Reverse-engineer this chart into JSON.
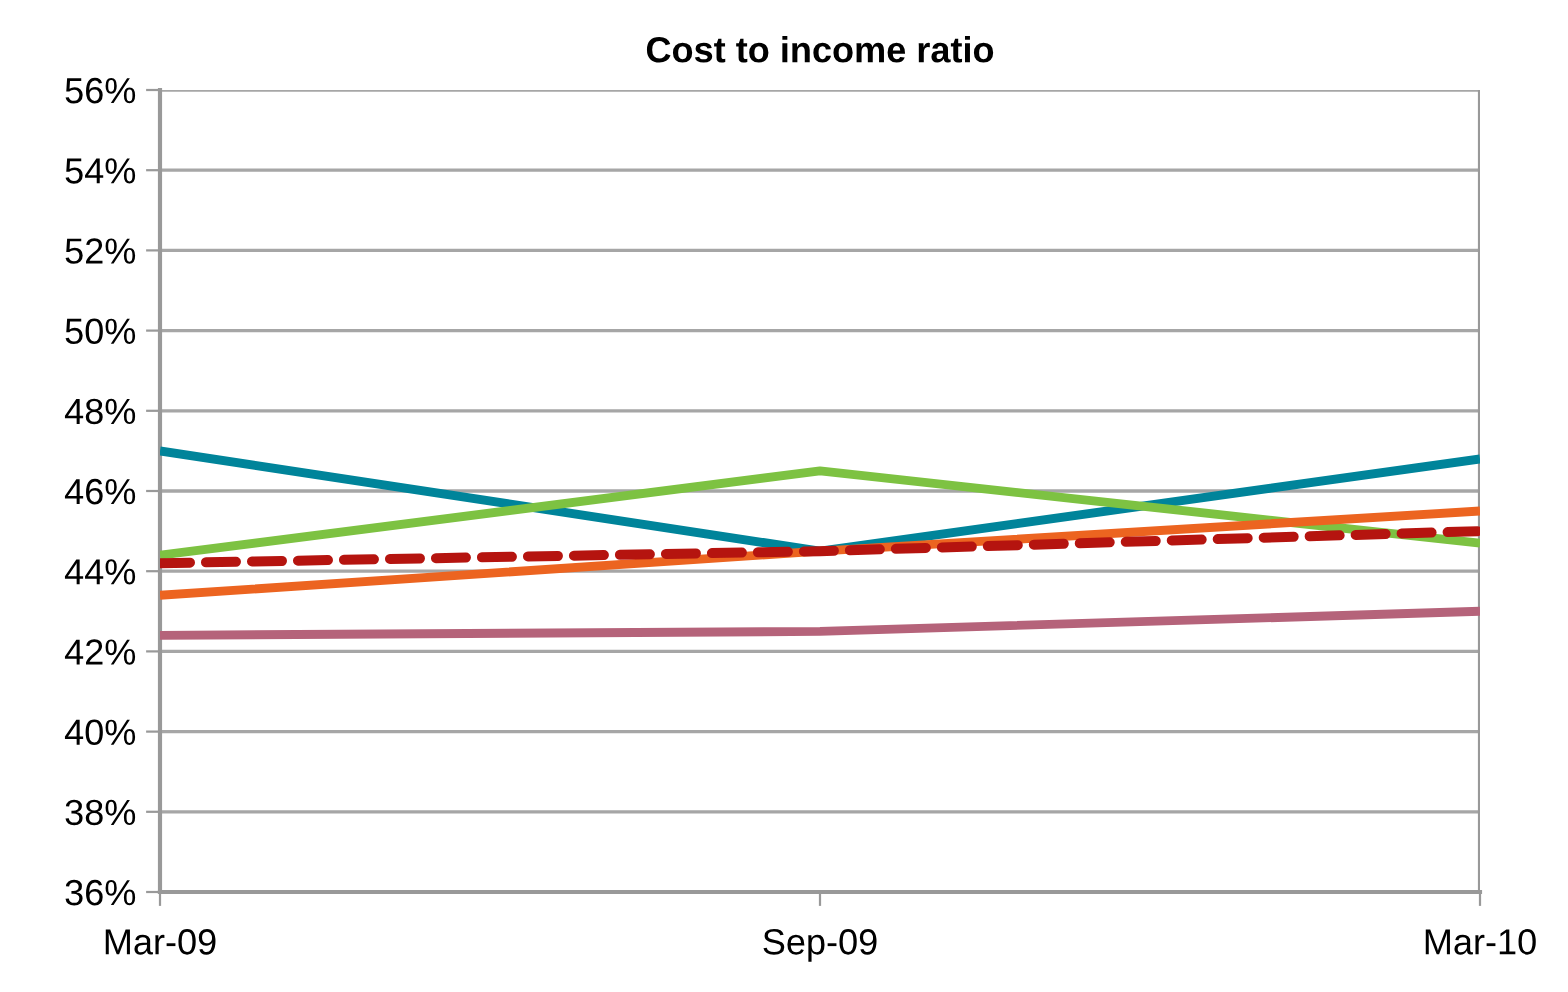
{
  "chart_data": {
    "type": "line",
    "title": "Cost to income ratio",
    "categories": [
      "Mar-09",
      "Sep-09",
      "Mar-10"
    ],
    "series": [
      {
        "color": "#00849a",
        "values": [
          47.0,
          44.5,
          46.8
        ]
      },
      {
        "color": "#7dc242",
        "values": [
          44.4,
          46.5,
          44.7
        ]
      },
      {
        "color": "#ec6420",
        "values": [
          43.4,
          44.5,
          45.5
        ]
      },
      {
        "color": "#b5637a",
        "values": [
          42.4,
          42.5,
          43.0
        ]
      },
      {
        "color": "#b5140f",
        "values": [
          44.2,
          44.5,
          45.0
        ],
        "line_style": "dashed"
      }
    ],
    "ylim": [
      36,
      56
    ],
    "yticks": [
      {
        "value": 36,
        "label": "36%"
      },
      {
        "value": 38,
        "label": "38%"
      },
      {
        "value": 40,
        "label": "40%"
      },
      {
        "value": 42,
        "label": "42%"
      },
      {
        "value": 44,
        "label": "44%"
      },
      {
        "value": 46,
        "label": "46%"
      },
      {
        "value": 48,
        "label": "48%"
      },
      {
        "value": 50,
        "label": "50%"
      },
      {
        "value": 52,
        "label": "52%"
      },
      {
        "value": 54,
        "label": "54%"
      },
      {
        "value": 56,
        "label": "56%"
      }
    ],
    "grid": "y",
    "marker": "none"
  }
}
